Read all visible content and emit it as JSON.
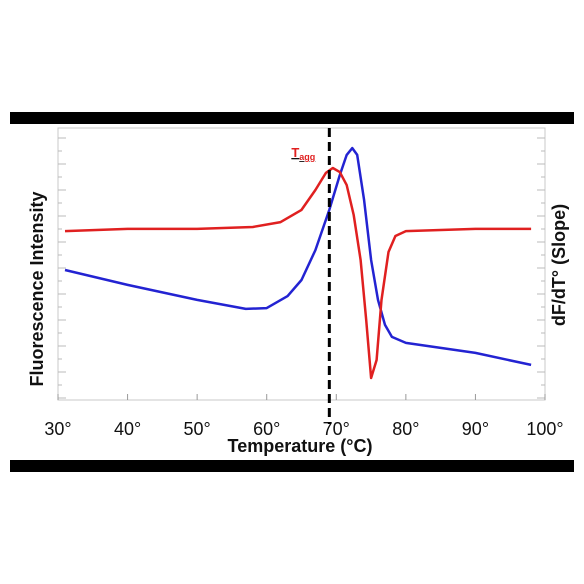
{
  "chart_data": {
    "type": "line",
    "xlabel": "Temperature (°C)",
    "ylabel": "Fluorescence Intensity",
    "y2label": "dF/dT° (Slope)",
    "xlim": [
      30,
      100
    ],
    "xticks": [
      {
        "value": 30,
        "label": "30°"
      },
      {
        "value": 40,
        "label": "40°"
      },
      {
        "value": 50,
        "label": "50°"
      },
      {
        "value": 60,
        "label": "60°"
      },
      {
        "value": 70,
        "label": "70°"
      },
      {
        "value": 80,
        "label": "80°"
      },
      {
        "value": 90,
        "label": "90°"
      },
      {
        "value": 100,
        "label": "100°"
      }
    ],
    "ylim": [
      0,
      100
    ],
    "y2lim": [
      0,
      100
    ],
    "vline": {
      "x": 69,
      "label": "T",
      "sub": "agg",
      "color": "#e02020"
    },
    "series": [
      {
        "color": "#2323d2",
        "x": [
          31,
          40,
          50,
          57,
          60,
          63,
          65,
          67,
          69,
          70.5,
          71.5,
          72.3,
          73,
          74,
          75,
          76,
          77,
          78,
          80,
          90,
          98
        ],
        "values": [
          47.8,
          42.3,
          36.8,
          33.5,
          33.8,
          38.2,
          44.1,
          55.1,
          69.9,
          82.7,
          90.1,
          92.6,
          90.1,
          73.5,
          51.5,
          36.8,
          27.6,
          23.2,
          21.0,
          17.3,
          12.9
        ]
      },
      {
        "color": "#e02020",
        "axis": "y2",
        "x": [
          31,
          40,
          50,
          58,
          62,
          65,
          67,
          68.5,
          69.5,
          70.5,
          71.5,
          72.5,
          73.5,
          74.3,
          75,
          75.8,
          76.5,
          77.5,
          78.5,
          80,
          90,
          98
        ],
        "values": [
          62.1,
          62.9,
          62.9,
          63.6,
          65.4,
          69.9,
          77.2,
          83.5,
          85.3,
          83.8,
          79.0,
          68.0,
          51.5,
          29.4,
          8.1,
          14.7,
          36.8,
          54.4,
          60.3,
          62.1,
          62.9,
          62.9
        ]
      }
    ]
  }
}
